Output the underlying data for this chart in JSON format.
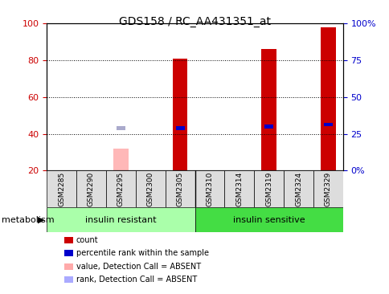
{
  "title": "GDS158 / RC_AA431351_at",
  "samples": [
    "GSM2285",
    "GSM2290",
    "GSM2295",
    "GSM2300",
    "GSM2305",
    "GSM2310",
    "GSM2314",
    "GSM2319",
    "GSM2324",
    "GSM2329"
  ],
  "count_values": [
    null,
    null,
    null,
    null,
    81,
    null,
    null,
    86,
    null,
    98
  ],
  "rank_values": [
    null,
    null,
    null,
    null,
    43,
    null,
    null,
    44,
    null,
    45
  ],
  "absent_value": [
    null,
    null,
    32,
    null,
    null,
    null,
    null,
    null,
    null,
    null
  ],
  "absent_rank": [
    null,
    null,
    43,
    null,
    null,
    null,
    null,
    null,
    null,
    null
  ],
  "ylim": [
    20,
    100
  ],
  "yticks_left": [
    20,
    40,
    60,
    80,
    100
  ],
  "yticks_right_labels": [
    "0%",
    "25",
    "50",
    "75",
    "100%"
  ],
  "yticks_right_pos": [
    20,
    40,
    60,
    80,
    100
  ],
  "group1_label": "insulin resistant",
  "group2_label": "insulin sensitive",
  "n_group1": 5,
  "n_group2": 5,
  "legend_items": [
    {
      "label": "count",
      "color": "#cc0000"
    },
    {
      "label": "percentile rank within the sample",
      "color": "#0000cc"
    },
    {
      "label": "value, Detection Call = ABSENT",
      "color": "#ffaaaa"
    },
    {
      "label": "rank, Detection Call = ABSENT",
      "color": "#aaaaff"
    }
  ],
  "bar_width": 0.5,
  "count_color": "#cc0000",
  "rank_color": "#0000cc",
  "absent_val_color": "#ffb8b8",
  "absent_rank_color": "#aaaacc",
  "group1_color": "#aaffaa",
  "group2_color": "#44dd44",
  "axis_color_left": "#cc0000",
  "axis_color_right": "#0000cc",
  "bg_color": "#ffffff",
  "bar_bottom": 20,
  "tick_label_gray": "#cccccc",
  "sample_box_color": "#dddddd"
}
